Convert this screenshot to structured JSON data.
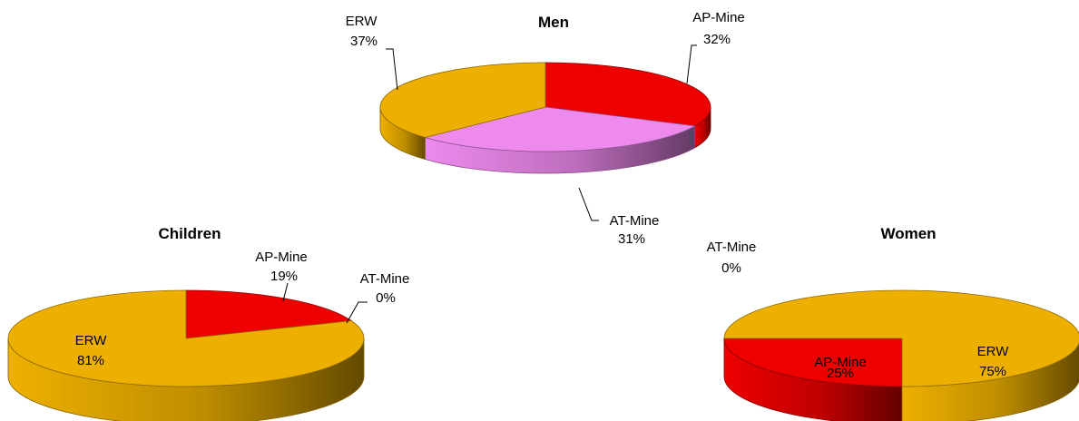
{
  "chart_data": [
    {
      "type": "pie",
      "title": "Men",
      "slices": [
        {
          "name": "AP-Mine",
          "value": 32,
          "label": "32%",
          "color": "#EE0000"
        },
        {
          "name": "AT-Mine",
          "value": 31,
          "label": "31%",
          "color": "#EE8AEE"
        },
        {
          "name": "ERW",
          "value": 37,
          "label": "37%",
          "color": "#EEB000"
        }
      ]
    },
    {
      "type": "pie",
      "title": "Children",
      "slices": [
        {
          "name": "AP-Mine",
          "value": 19,
          "label": "19%",
          "color": "#EE0000"
        },
        {
          "name": "AT-Mine",
          "value": 0,
          "label": "0%",
          "color": "#EE8AEE"
        },
        {
          "name": "ERW",
          "value": 81,
          "label": "81%",
          "color": "#EEB000"
        }
      ]
    },
    {
      "type": "pie",
      "title": "Women",
      "slices": [
        {
          "name": "AP-Mine",
          "value": 25,
          "label": "25%",
          "color": "#EE0000"
        },
        {
          "name": "AT-Mine",
          "value": 0,
          "label": "0%",
          "color": "#EE8AEE"
        },
        {
          "name": "ERW",
          "value": 75,
          "label": "75%",
          "color": "#EEB000"
        }
      ]
    }
  ]
}
